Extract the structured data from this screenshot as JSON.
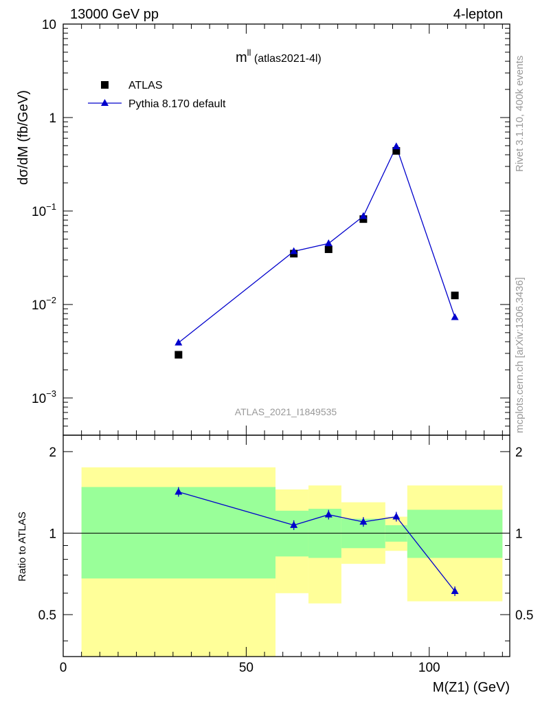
{
  "header": {
    "left": "13000 GeV pp",
    "right": "4-lepton"
  },
  "side_labels": {
    "top": "Rivet 3.1.10,  400k events",
    "bottom": "mcplots.cern.ch [arXiv:1306.3436]"
  },
  "watermark": "ATLAS_2021_I1849535",
  "plot_title": {
    "main": "m",
    "sup": "ll",
    "suffix": " (atlas2021-4l)"
  },
  "legend": [
    {
      "label": "ATLAS",
      "marker": "square",
      "color": "#000000"
    },
    {
      "label": "Pythia 8.170 default",
      "marker": "triangle",
      "color": "#0000cc"
    }
  ],
  "colors": {
    "data": "#000000",
    "mc": "#0000cc",
    "band_inner": "#99ff99",
    "band_outer": "#ffff99",
    "side_text": "#999999"
  },
  "chart_data": [
    {
      "type": "scatter",
      "ylabel": "dσ/dM (fb/GeV)",
      "log_y": true,
      "ylim": [
        0.0004,
        10
      ],
      "xlim": [
        0,
        122
      ],
      "y_tick_labels": [
        {
          "base": "10",
          "exp": "",
          "value": 10
        },
        {
          "base": "1",
          "exp": "",
          "value": 1
        },
        {
          "base": "10",
          "exp": "−1",
          "value": 0.1
        },
        {
          "base": "10",
          "exp": "−2",
          "value": 0.01
        },
        {
          "base": "10",
          "exp": "−3",
          "value": 0.001
        }
      ],
      "series": [
        {
          "name": "ATLAS",
          "x": [
            31.5,
            63.0,
            72.5,
            82.0,
            91.0,
            107.0
          ],
          "y": [
            0.0029,
            0.035,
            0.039,
            0.082,
            0.44,
            0.0125
          ]
        },
        {
          "name": "Pythia 8.170 default",
          "x": [
            31.5,
            63.0,
            72.5,
            82.0,
            91.0,
            107.0
          ],
          "y": [
            0.0039,
            0.037,
            0.045,
            0.088,
            0.49,
            0.0073
          ]
        }
      ]
    },
    {
      "type": "line",
      "ylabel": "Ratio to ATLAS",
      "xlabel": "M(Z1) (GeV)",
      "xlim": [
        0,
        122
      ],
      "ylim": [
        0.35,
        2.3
      ],
      "log_y": true,
      "y_tick_labels": [
        {
          "label": "2",
          "value": 2
        },
        {
          "label": "1",
          "value": 1
        },
        {
          "label": "0.5",
          "value": 0.5
        }
      ],
      "x_tick_labels": [
        {
          "label": "0",
          "value": 0
        },
        {
          "label": "50",
          "value": 50
        },
        {
          "label": "100",
          "value": 100
        }
      ],
      "bands": [
        {
          "x0": 5,
          "x1": 58,
          "inner": [
            0.68,
            1.48
          ],
          "outer": [
            0.35,
            1.75
          ]
        },
        {
          "x0": 58,
          "x1": 67,
          "inner": [
            0.82,
            1.21
          ],
          "outer": [
            0.6,
            1.45
          ]
        },
        {
          "x0": 67,
          "x1": 76,
          "inner": [
            0.81,
            1.23
          ],
          "outer": [
            0.55,
            1.5
          ]
        },
        {
          "x0": 76,
          "x1": 88,
          "inner": [
            0.88,
            1.13
          ],
          "outer": [
            0.77,
            1.3
          ]
        },
        {
          "x0": 88,
          "x1": 94,
          "inner": [
            0.93,
            1.07
          ],
          "outer": [
            0.86,
            1.15
          ]
        },
        {
          "x0": 94,
          "x1": 120,
          "inner": [
            0.81,
            1.22
          ],
          "outer": [
            0.56,
            1.5
          ]
        }
      ],
      "series": [
        {
          "name": "Pythia 8.170 default",
          "x": [
            31.5,
            63.0,
            72.5,
            82.0,
            91.0,
            107.0
          ],
          "y": [
            1.42,
            1.07,
            1.17,
            1.1,
            1.15,
            0.61
          ]
        }
      ]
    }
  ]
}
